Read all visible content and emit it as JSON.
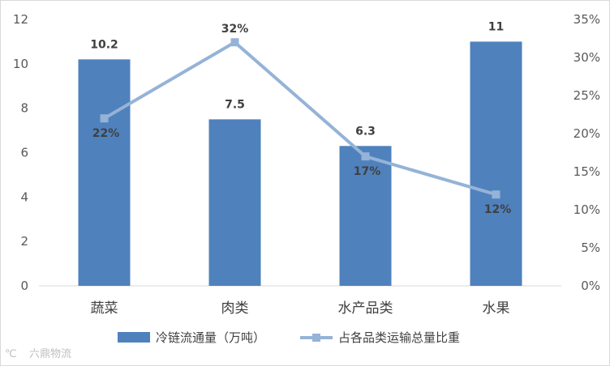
{
  "chart_data": {
    "type": "bar+line",
    "categories": [
      "蔬菜",
      "肉类",
      "水产品类",
      "水果"
    ],
    "series": [
      {
        "name": "冷链流通量（万吨）",
        "type": "bar",
        "axis": "left",
        "values": [
          10.2,
          7.5,
          6.3,
          11
        ],
        "labels": [
          "10.2",
          "7.5",
          "6.3",
          "11"
        ],
        "color": "#4f81bd"
      },
      {
        "name": "占各品类运输总量比重",
        "type": "line",
        "axis": "right",
        "values": [
          22,
          32,
          17,
          12
        ],
        "labels": [
          "22%",
          "32%",
          "17%",
          "12%"
        ],
        "color": "#95b3d7"
      }
    ],
    "left_axis": {
      "ylim": [
        0,
        12
      ],
      "ticks": [
        "0",
        "2",
        "4",
        "6",
        "8",
        "10",
        "12"
      ]
    },
    "right_axis": {
      "ylim": [
        0,
        35
      ],
      "ticks": [
        "0%",
        "5%",
        "10%",
        "15%",
        "20%",
        "25%",
        "30%",
        "35%"
      ]
    },
    "grid": false,
    "legend_position": "bottom"
  },
  "watermark": {
    "text": "六鼎物流"
  }
}
